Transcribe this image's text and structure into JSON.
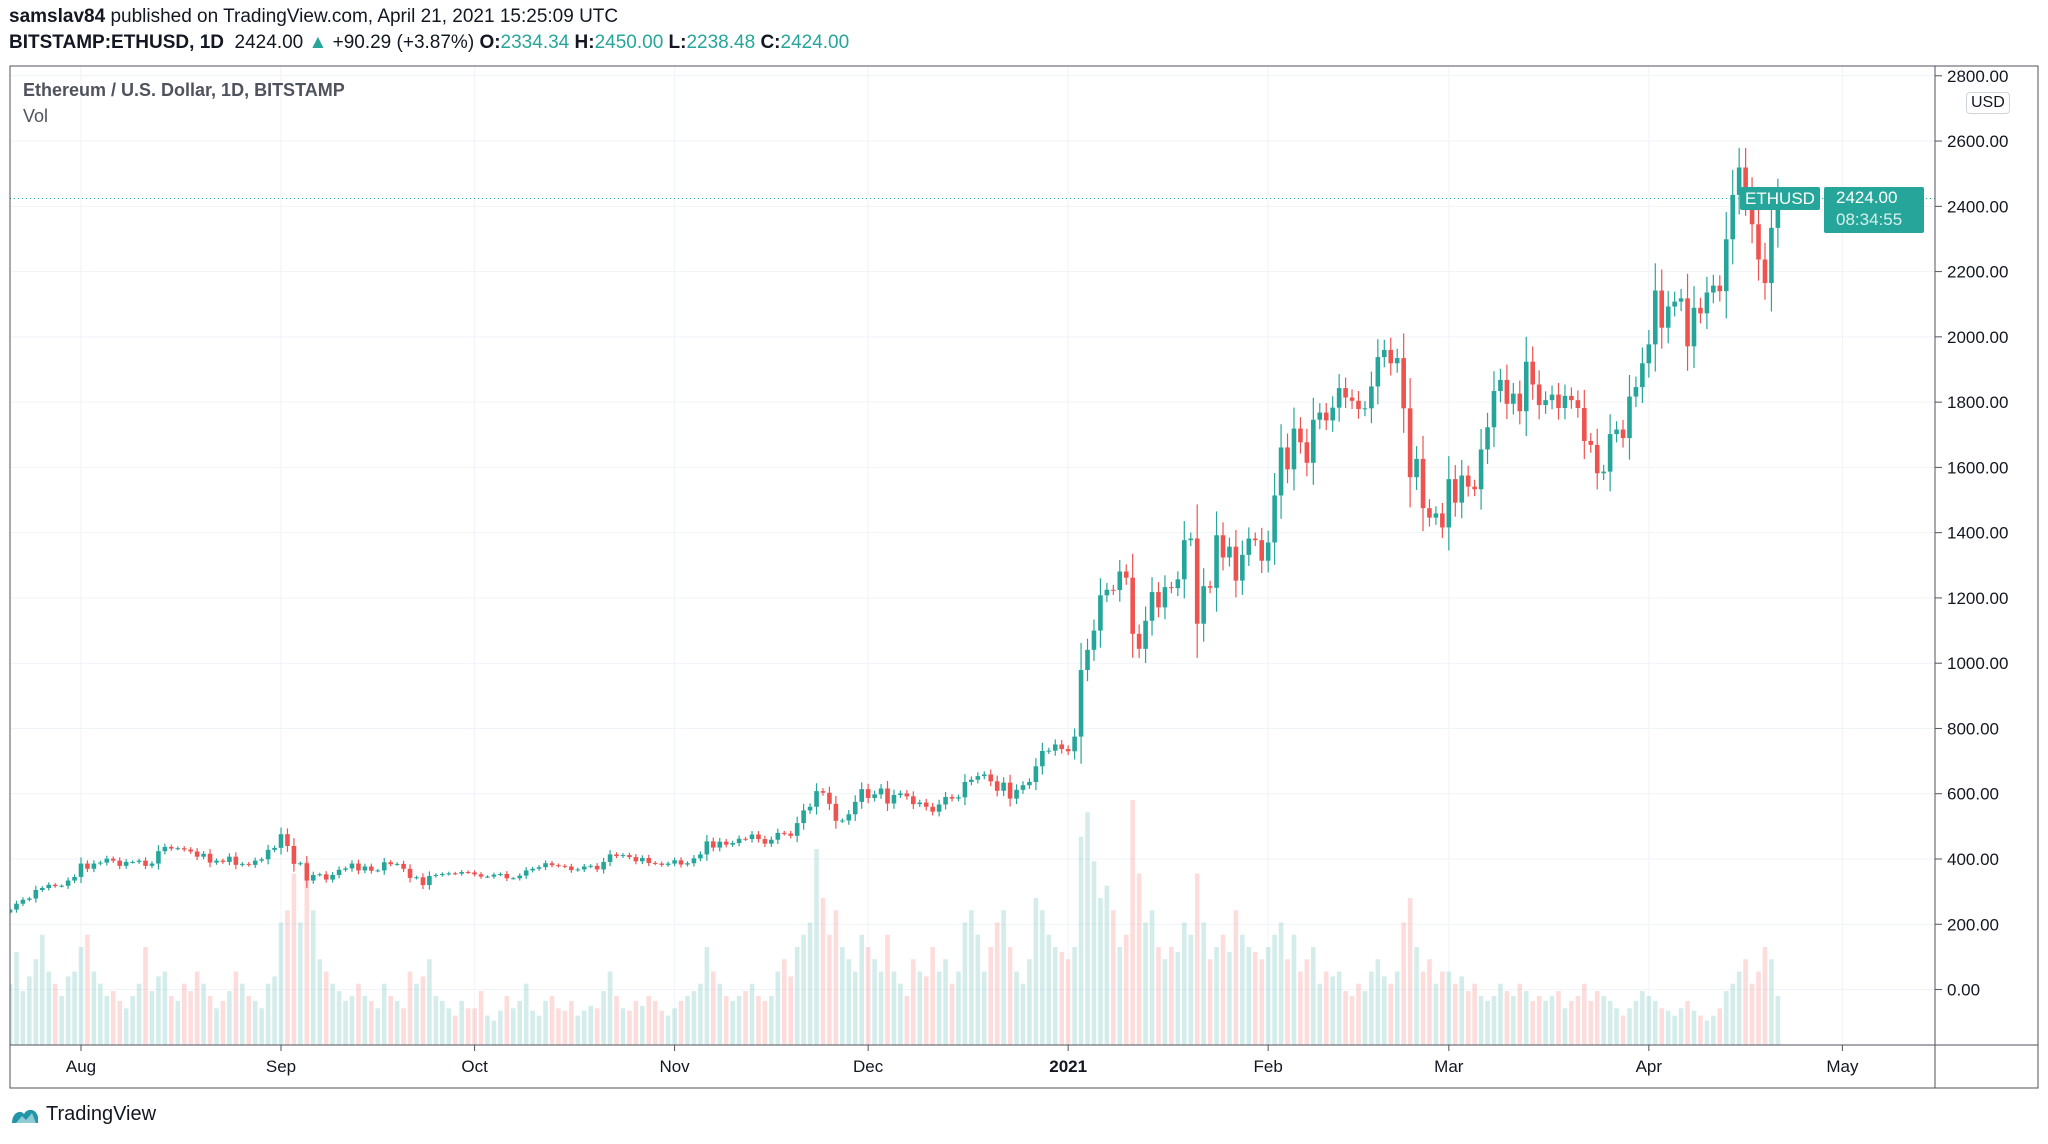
{
  "header": {
    "author": "samslav84",
    "published": "published on TradingView.com, April 21, 2021 15:25:09 UTC",
    "symbol": "BITSTAMP:ETHUSD, 1D",
    "last": "2424.00",
    "change": "+90.29 (+3.87%)",
    "o_label": "O:",
    "o": "2334.34",
    "h_label": "H:",
    "h": "2450.00",
    "l_label": "L:",
    "l": "2238.48",
    "c_label": "C:",
    "c": "2424.00"
  },
  "legend": {
    "title": "Ethereum / U.S. Dollar, 1D, BITSTAMP",
    "vol": "Vol"
  },
  "currency": "USD",
  "last_price_label": {
    "symbol": "ETHUSD",
    "price": "2424.00",
    "countdown": "08:34:55"
  },
  "footer": {
    "brand": "TradingView"
  },
  "colors": {
    "up": "#26a69a",
    "down": "#ef5350",
    "grid": "#f0f3fa",
    "text": "#131722"
  },
  "chart_data": {
    "type": "candlestick",
    "title": "Ethereum / U.S. Dollar, 1D, BITSTAMP",
    "first_open": 236,
    "ylim": [
      -170,
      2830
    ],
    "yticks": [
      "2800.00",
      "2600.00",
      "2400.00",
      "2200.00",
      "2000.00",
      "1800.00",
      "1600.00",
      "1400.00",
      "1200.00",
      "1000.00",
      "800.00",
      "600.00",
      "400.00",
      "200.00",
      "0.00"
    ],
    "xticks": [
      {
        "label": "Aug",
        "date": "2020-08-01",
        "bold": false
      },
      {
        "label": "Sep",
        "date": "2020-09-01",
        "bold": false
      },
      {
        "label": "Oct",
        "date": "2020-10-01",
        "bold": false
      },
      {
        "label": "Nov",
        "date": "2020-11-01",
        "bold": false
      },
      {
        "label": "Dec",
        "date": "2020-12-01",
        "bold": false
      },
      {
        "label": "2021",
        "date": "2021-01-01",
        "bold": true
      },
      {
        "label": "Feb",
        "date": "2021-02-01",
        "bold": false
      },
      {
        "label": "Mar",
        "date": "2021-03-01",
        "bold": false
      },
      {
        "label": "Apr",
        "date": "2021-04-01",
        "bold": false
      },
      {
        "label": "May",
        "date": "2021-05-01",
        "bold": false
      }
    ],
    "last_price": 2424.0,
    "grid": true,
    "months": [
      {
        "month": "2020-07",
        "first_day": 21,
        "close": [
          245,
          263,
          275,
          279,
          305,
          311,
          321,
          317,
          318,
          334,
          345
        ],
        "volume": [
          25,
          38,
          22,
          28,
          35,
          45,
          30,
          25,
          20,
          28,
          30
        ]
      },
      {
        "month": "2020-08",
        "first_day": 1,
        "close": [
          386,
          370,
          386,
          389,
          401,
          395,
          379,
          391,
          391,
          395,
          379,
          386,
          424,
          437,
          432,
          433,
          429,
          423,
          407,
          416,
          389,
          395,
          391,
          407,
          382,
          385,
          382,
          395,
          399,
          428,
          434
        ],
        "volume": [
          40,
          45,
          30,
          25,
          20,
          22,
          18,
          15,
          20,
          25,
          40,
          22,
          28,
          30,
          20,
          18,
          25,
          22,
          30,
          25,
          20,
          15,
          18,
          22,
          30,
          25,
          20,
          18,
          15,
          25,
          28
        ]
      },
      {
        "month": "2020-09",
        "first_day": 1,
        "close": [
          476,
          440,
          385,
          387,
          334,
          351,
          353,
          337,
          351,
          367,
          371,
          386,
          365,
          377,
          364,
          365,
          390,
          384,
          385,
          370,
          342,
          344,
          320,
          348,
          351,
          354,
          356,
          355,
          360,
          359
        ],
        "volume": [
          50,
          55,
          70,
          50,
          75,
          55,
          35,
          30,
          25,
          22,
          18,
          20,
          25,
          20,
          18,
          15,
          25,
          20,
          18,
          15,
          30,
          25,
          28,
          35,
          20,
          18,
          15,
          12,
          18,
          15
        ]
      },
      {
        "month": "2020-10",
        "first_day": 1,
        "close": [
          353,
          346,
          346,
          352,
          354,
          341,
          341,
          349,
          365,
          370,
          375,
          387,
          381,
          379,
          377,
          366,
          368,
          377,
          379,
          368,
          391,
          414,
          409,
          412,
          406,
          393,
          403,
          388,
          386,
          382,
          386
        ],
        "volume": [
          15,
          22,
          12,
          10,
          14,
          20,
          15,
          18,
          25,
          14,
          12,
          18,
          20,
          15,
          14,
          18,
          12,
          14,
          16,
          15,
          22,
          30,
          20,
          15,
          14,
          18,
          16,
          20,
          18,
          14,
          12
        ]
      },
      {
        "month": "2020-11",
        "first_day": 1,
        "close": [
          396,
          383,
          387,
          402,
          414,
          454,
          435,
          453,
          444,
          449,
          462,
          461,
          475,
          461,
          447,
          459,
          480,
          478,
          471,
          510,
          549,
          560,
          608,
          603,
          569,
          517,
          518,
          537,
          575,
          614
        ],
        "volume": [
          15,
          18,
          20,
          22,
          25,
          40,
          30,
          25,
          20,
          18,
          20,
          22,
          25,
          20,
          18,
          20,
          30,
          35,
          28,
          40,
          45,
          50,
          80,
          60,
          45,
          55,
          40,
          35,
          30,
          45
        ]
      },
      {
        "month": "2020-12",
        "first_day": 1,
        "close": [
          587,
          598,
          616,
          570,
          596,
          601,
          592,
          568,
          573,
          560,
          545,
          567,
          590,
          585,
          589,
          636,
          643,
          654,
          659,
          638,
          609,
          634,
          585,
          612,
          626,
          636,
          684,
          731,
          732,
          751,
          737
        ],
        "volume": [
          40,
          35,
          30,
          45,
          30,
          25,
          20,
          35,
          30,
          28,
          40,
          30,
          35,
          25,
          30,
          50,
          55,
          45,
          30,
          40,
          50,
          55,
          40,
          30,
          25,
          35,
          60,
          55,
          45,
          40,
          38
        ]
      },
      {
        "month": "2021-01",
        "first_day": 1,
        "close": [
          730,
          775,
          979,
          1041,
          1100,
          1208,
          1225,
          1224,
          1281,
          1262,
          1090,
          1044,
          1130,
          1218,
          1171,
          1233,
          1230,
          1257,
          1377,
          1382,
          1121,
          1236,
          1231,
          1392,
          1324,
          1357,
          1253,
          1332,
          1382,
          1377,
          1314
        ],
        "volume": [
          35,
          40,
          85,
          95,
          75,
          60,
          65,
          55,
          40,
          45,
          100,
          70,
          50,
          55,
          40,
          35,
          40,
          38,
          50,
          45,
          70,
          50,
          35,
          40,
          45,
          38,
          55,
          45,
          40,
          38,
          35
        ]
      },
      {
        "month": "2021-02",
        "first_day": 1,
        "close": [
          1370,
          1514,
          1661,
          1594,
          1719,
          1677,
          1614,
          1746,
          1768,
          1744,
          1783,
          1843,
          1814,
          1804,
          1779,
          1781,
          1848,
          1938,
          1960,
          1919,
          1935,
          1781,
          1570,
          1626,
          1475,
          1446,
          1459,
          1416
        ],
        "volume": [
          40,
          45,
          50,
          35,
          45,
          30,
          35,
          40,
          25,
          30,
          28,
          30,
          22,
          20,
          25,
          22,
          30,
          35,
          28,
          25,
          30,
          50,
          60,
          40,
          30,
          35,
          25,
          30
        ]
      },
      {
        "month": "2021-03",
        "first_day": 1,
        "close": [
          1564,
          1492,
          1575,
          1541,
          1533,
          1655,
          1723,
          1834,
          1868,
          1795,
          1826,
          1772,
          1924,
          1854,
          1791,
          1806,
          1823,
          1782,
          1819,
          1806,
          1782,
          1681,
          1669,
          1582,
          1587,
          1702,
          1716,
          1690,
          1817,
          1846,
          1919
        ],
        "volume": [
          30,
          25,
          28,
          22,
          25,
          20,
          18,
          20,
          25,
          22,
          20,
          25,
          22,
          18,
          20,
          18,
          20,
          22,
          15,
          18,
          20,
          25,
          18,
          22,
          20,
          18,
          15,
          12,
          15,
          18,
          22
        ]
      },
      {
        "month": "2021-04",
        "first_day": 1,
        "close": [
          1977,
          2142,
          2028,
          2093,
          2108,
          2118,
          1971,
          2089,
          2072,
          2136,
          2157,
          2140,
          2299,
          2435,
          2519,
          2431,
          2345,
          2237,
          2165,
          2334,
          2424
        ],
        "volume": [
          20,
          18,
          15,
          14,
          12,
          15,
          18,
          14,
          12,
          10,
          12,
          15,
          22,
          25,
          30,
          35,
          25,
          30,
          40,
          35,
          20
        ]
      }
    ]
  }
}
